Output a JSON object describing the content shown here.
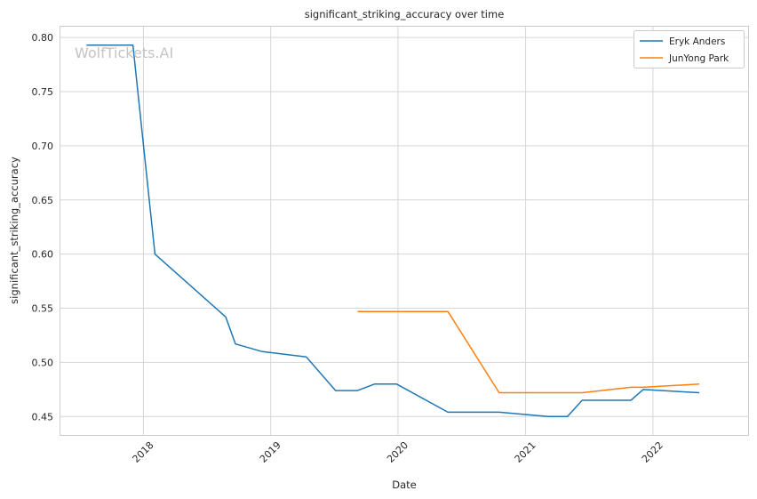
{
  "chart_data": {
    "type": "line",
    "title": "significant_striking_accuracy over time",
    "xlabel": "Date",
    "ylabel": "significant_striking_accuracy",
    "watermark": "WolfTickets.AI",
    "xlim": [
      "2017-05-08",
      "2022-10-01"
    ],
    "ylim": [
      0.433,
      0.81
    ],
    "x_ticks": [
      "2018",
      "2019",
      "2020",
      "2021",
      "2022"
    ],
    "y_ticks": [
      "0.45",
      "0.50",
      "0.55",
      "0.60",
      "0.65",
      "0.70",
      "0.75",
      "0.80"
    ],
    "grid": true,
    "legend_position": "top-right",
    "series": [
      {
        "name": "Eryk Anders",
        "color": "#1f77b4",
        "points": [
          [
            "2017-07-22",
            0.793
          ],
          [
            "2017-12-02",
            0.793
          ],
          [
            "2018-02-03",
            0.6
          ],
          [
            "2018-08-25",
            0.542
          ],
          [
            "2018-09-22",
            0.517
          ],
          [
            "2018-12-08",
            0.51
          ],
          [
            "2019-04-13",
            0.505
          ],
          [
            "2019-07-06",
            0.474
          ],
          [
            "2019-09-07",
            0.474
          ],
          [
            "2019-10-26",
            0.48
          ],
          [
            "2019-12-28",
            0.48
          ],
          [
            "2020-05-23",
            0.454
          ],
          [
            "2020-10-17",
            0.454
          ],
          [
            "2021-03-06",
            0.45
          ],
          [
            "2021-05-01",
            0.45
          ],
          [
            "2021-06-12",
            0.465
          ],
          [
            "2021-10-30",
            0.465
          ],
          [
            "2021-12-04",
            0.475
          ],
          [
            "2022-05-14",
            0.472
          ]
        ]
      },
      {
        "name": "JunYong Park",
        "color": "#ff7f0e",
        "points": [
          [
            "2019-09-07",
            0.547
          ],
          [
            "2020-05-23",
            0.547
          ],
          [
            "2020-10-17",
            0.472
          ],
          [
            "2021-03-06",
            0.472
          ],
          [
            "2021-06-12",
            0.472
          ],
          [
            "2021-10-30",
            0.477
          ],
          [
            "2021-12-04",
            0.477
          ],
          [
            "2022-05-14",
            0.48
          ]
        ]
      }
    ]
  }
}
